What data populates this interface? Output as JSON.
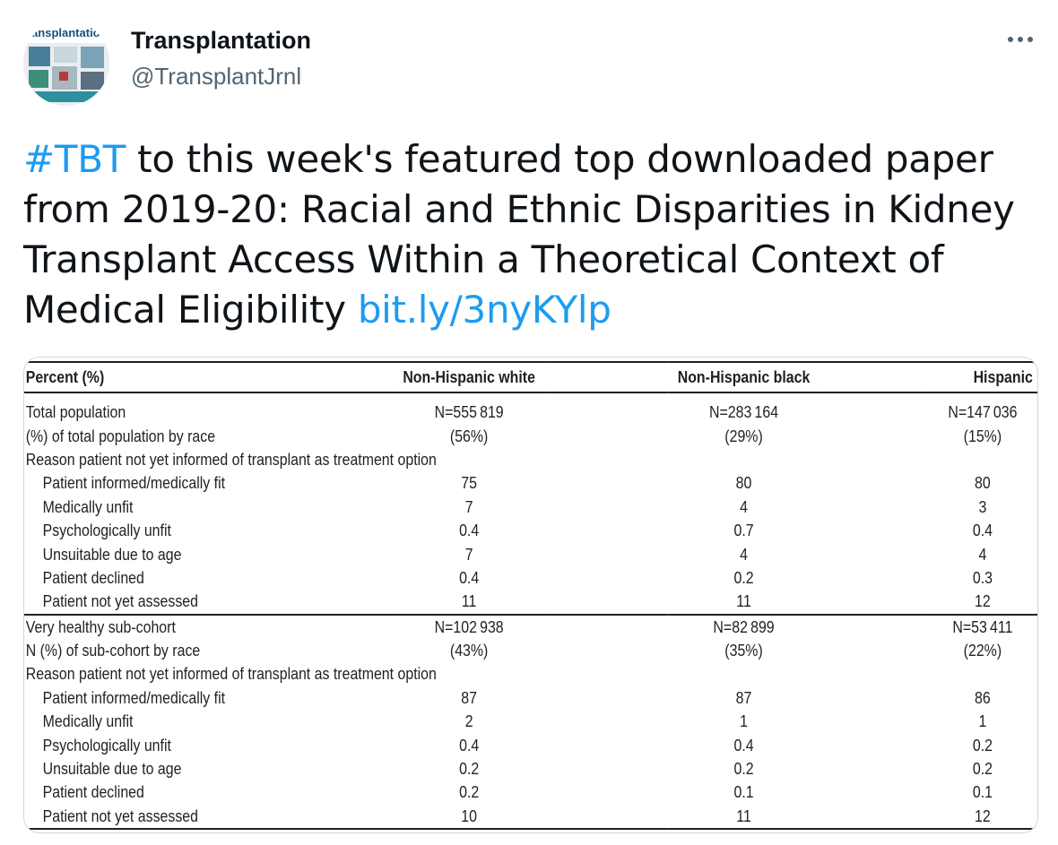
{
  "tweet": {
    "display_name": "Transplantation",
    "handle": "@TransplantJrnl",
    "avatar_text": "ransplantation",
    "text_hashtag": "#TBT",
    "text_body": " to this week's featured top downloaded paper from 2019-20: Racial and Ethnic Disparities in Kidney Transplant Access Within a Theoretical Context of Medical Eligibility ",
    "text_link": "bit.ly/3nyKYlp",
    "link_color": "#1d9bf0"
  },
  "table": {
    "headers": [
      "Percent (%)",
      "Non-Hispanic white",
      "Non-Hispanic black",
      "Hispanic"
    ],
    "rows": [
      [
        "Total population",
        "N=555 819",
        "N=283 164",
        "N=147 036"
      ],
      [
        "(%) of total population by race",
        "(56%)",
        "(29%)",
        "(15%)"
      ],
      [
        "Reason patient not yet informed of transplant as treatment option",
        "",
        "",
        ""
      ],
      [
        "Patient informed/medically fit",
        "75",
        "80",
        "80"
      ],
      [
        "Medically unfit",
        "7",
        "4",
        "3"
      ],
      [
        "Psychologically unfit",
        "0.4",
        "0.7",
        "0.4"
      ],
      [
        "Unsuitable due to age",
        "7",
        "4",
        "4"
      ],
      [
        "Patient declined",
        "0.4",
        "0.2",
        "0.3"
      ],
      [
        "Patient not yet assessed",
        "11",
        "11",
        "12"
      ],
      [
        "Very healthy sub-cohort",
        "N=102 938",
        "N=82 899",
        "N=53 411"
      ],
      [
        "N (%) of sub-cohort by race",
        "(43%)",
        "(35%)",
        "(22%)"
      ],
      [
        "Reason patient not yet informed of transplant as treatment option",
        "",
        "",
        ""
      ],
      [
        "Patient informed/medically fit",
        "87",
        "87",
        "86"
      ],
      [
        "Medically unfit",
        "2",
        "1",
        "1"
      ],
      [
        "Psychologically unfit",
        "0.4",
        "0.4",
        "0.2"
      ],
      [
        "Unsuitable due to age",
        "0.2",
        "0.2",
        "0.2"
      ],
      [
        "Patient declined",
        "0.2",
        "0.1",
        "0.1"
      ],
      [
        "Patient not yet assessed",
        "10",
        "11",
        "12"
      ]
    ]
  }
}
